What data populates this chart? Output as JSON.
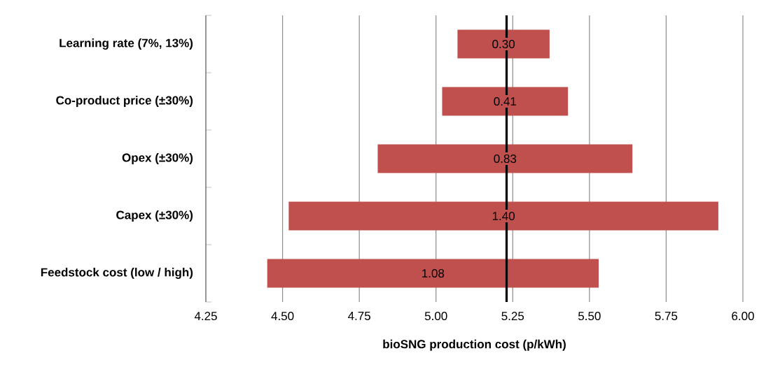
{
  "chart_data": {
    "type": "bar",
    "orientation": "horizontal",
    "categories": [
      "Learning rate (7%,  13%)",
      "Co-product price (±30%)",
      "Opex (±30%)",
      "Capex (±30%)",
      "Feedstock cost (low / high)"
    ],
    "base": [
      5.07,
      5.02,
      4.81,
      4.52,
      4.45
    ],
    "values": [
      0.3,
      0.41,
      0.83,
      1.4,
      1.08
    ],
    "value_labels": [
      "0.30",
      "0.41",
      "0.83",
      "1.40",
      "1.08"
    ],
    "color": "#c0504d",
    "xlabel": "bioSNG production cost (p/kWh)",
    "xlim": [
      4.25,
      6.0
    ],
    "xticks": [
      {
        "value": 4.25,
        "label": "4.25"
      },
      {
        "value": 4.5,
        "label": "4.50"
      },
      {
        "value": 4.75,
        "label": "4.75"
      },
      {
        "value": 5.0,
        "label": "5.00"
      },
      {
        "value": 5.25,
        "label": "5.25"
      },
      {
        "value": 5.5,
        "label": "5.50"
      },
      {
        "value": 5.75,
        "label": "5.75"
      },
      {
        "value": 6.0,
        "label": "6.00"
      }
    ],
    "ref_lines": [
      {
        "axis": "x",
        "value": 5.23,
        "color": "#000000"
      }
    ],
    "grid": "x"
  }
}
